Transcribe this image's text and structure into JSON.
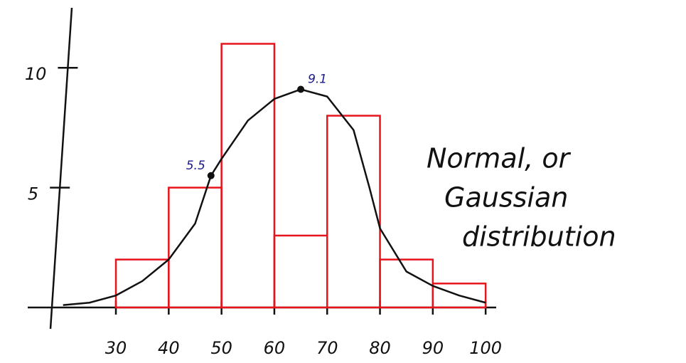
{
  "chart_data": {
    "type": "histogram",
    "title_lines": [
      "Normal, or",
      "Gaussian",
      "distribution"
    ],
    "bins": [
      30,
      40,
      50,
      60,
      70,
      80,
      90,
      100
    ],
    "values": [
      2,
      5,
      11,
      3,
      8,
      2,
      1
    ],
    "color": "#e8141c",
    "curve": {
      "x": [
        20,
        25,
        30,
        35,
        40,
        45,
        48,
        50,
        55,
        60,
        65,
        70,
        75,
        78,
        80,
        85,
        90,
        95,
        100
      ],
      "values": [
        0.1,
        0.2,
        0.5,
        1.1,
        2.0,
        3.5,
        5.5,
        6.2,
        7.8,
        8.7,
        9.1,
        8.8,
        7.4,
        5.0,
        3.3,
        1.5,
        0.9,
        0.5,
        0.2
      ],
      "color": "#111111"
    },
    "points": {
      "x": [
        48,
        65
      ],
      "values": [
        5.5,
        9.1
      ],
      "value_labels": [
        "5.5",
        "9.1"
      ],
      "color": "#111111"
    },
    "xlim": [
      16,
      102
    ],
    "ylim": [
      0,
      12.5
    ],
    "xticks": [
      30,
      40,
      50,
      60,
      70,
      80,
      90,
      100
    ],
    "yticks": [
      5,
      10
    ]
  }
}
